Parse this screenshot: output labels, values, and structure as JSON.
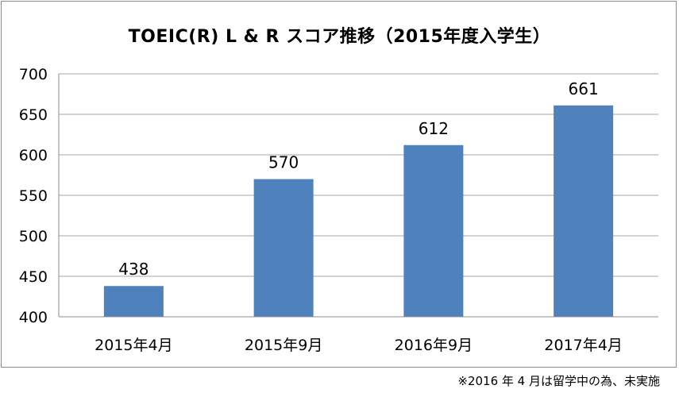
{
  "chart_data": {
    "type": "bar",
    "title": "TOEIC(R) L & R スコア推移（2015年度入学生）",
    "categories": [
      "2015年4月",
      "2015年9月",
      "2016年9月",
      "2017年4月"
    ],
    "values": [
      438,
      570,
      612,
      661
    ],
    "data_labels": [
      "438",
      "570",
      "612",
      "661"
    ],
    "ylim": [
      400,
      700
    ],
    "yticks": [
      400,
      450,
      500,
      550,
      600,
      650,
      700
    ],
    "ytick_labels": [
      "400",
      "450",
      "500",
      "550",
      "600",
      "650",
      "700"
    ],
    "xlabel": "",
    "ylabel": "",
    "grid": true,
    "legend": "none",
    "bar_color": "#4f81bd",
    "grid_color": "#a6a6a6"
  },
  "note": "※2016 年 4 月は留学中の為、未実施"
}
